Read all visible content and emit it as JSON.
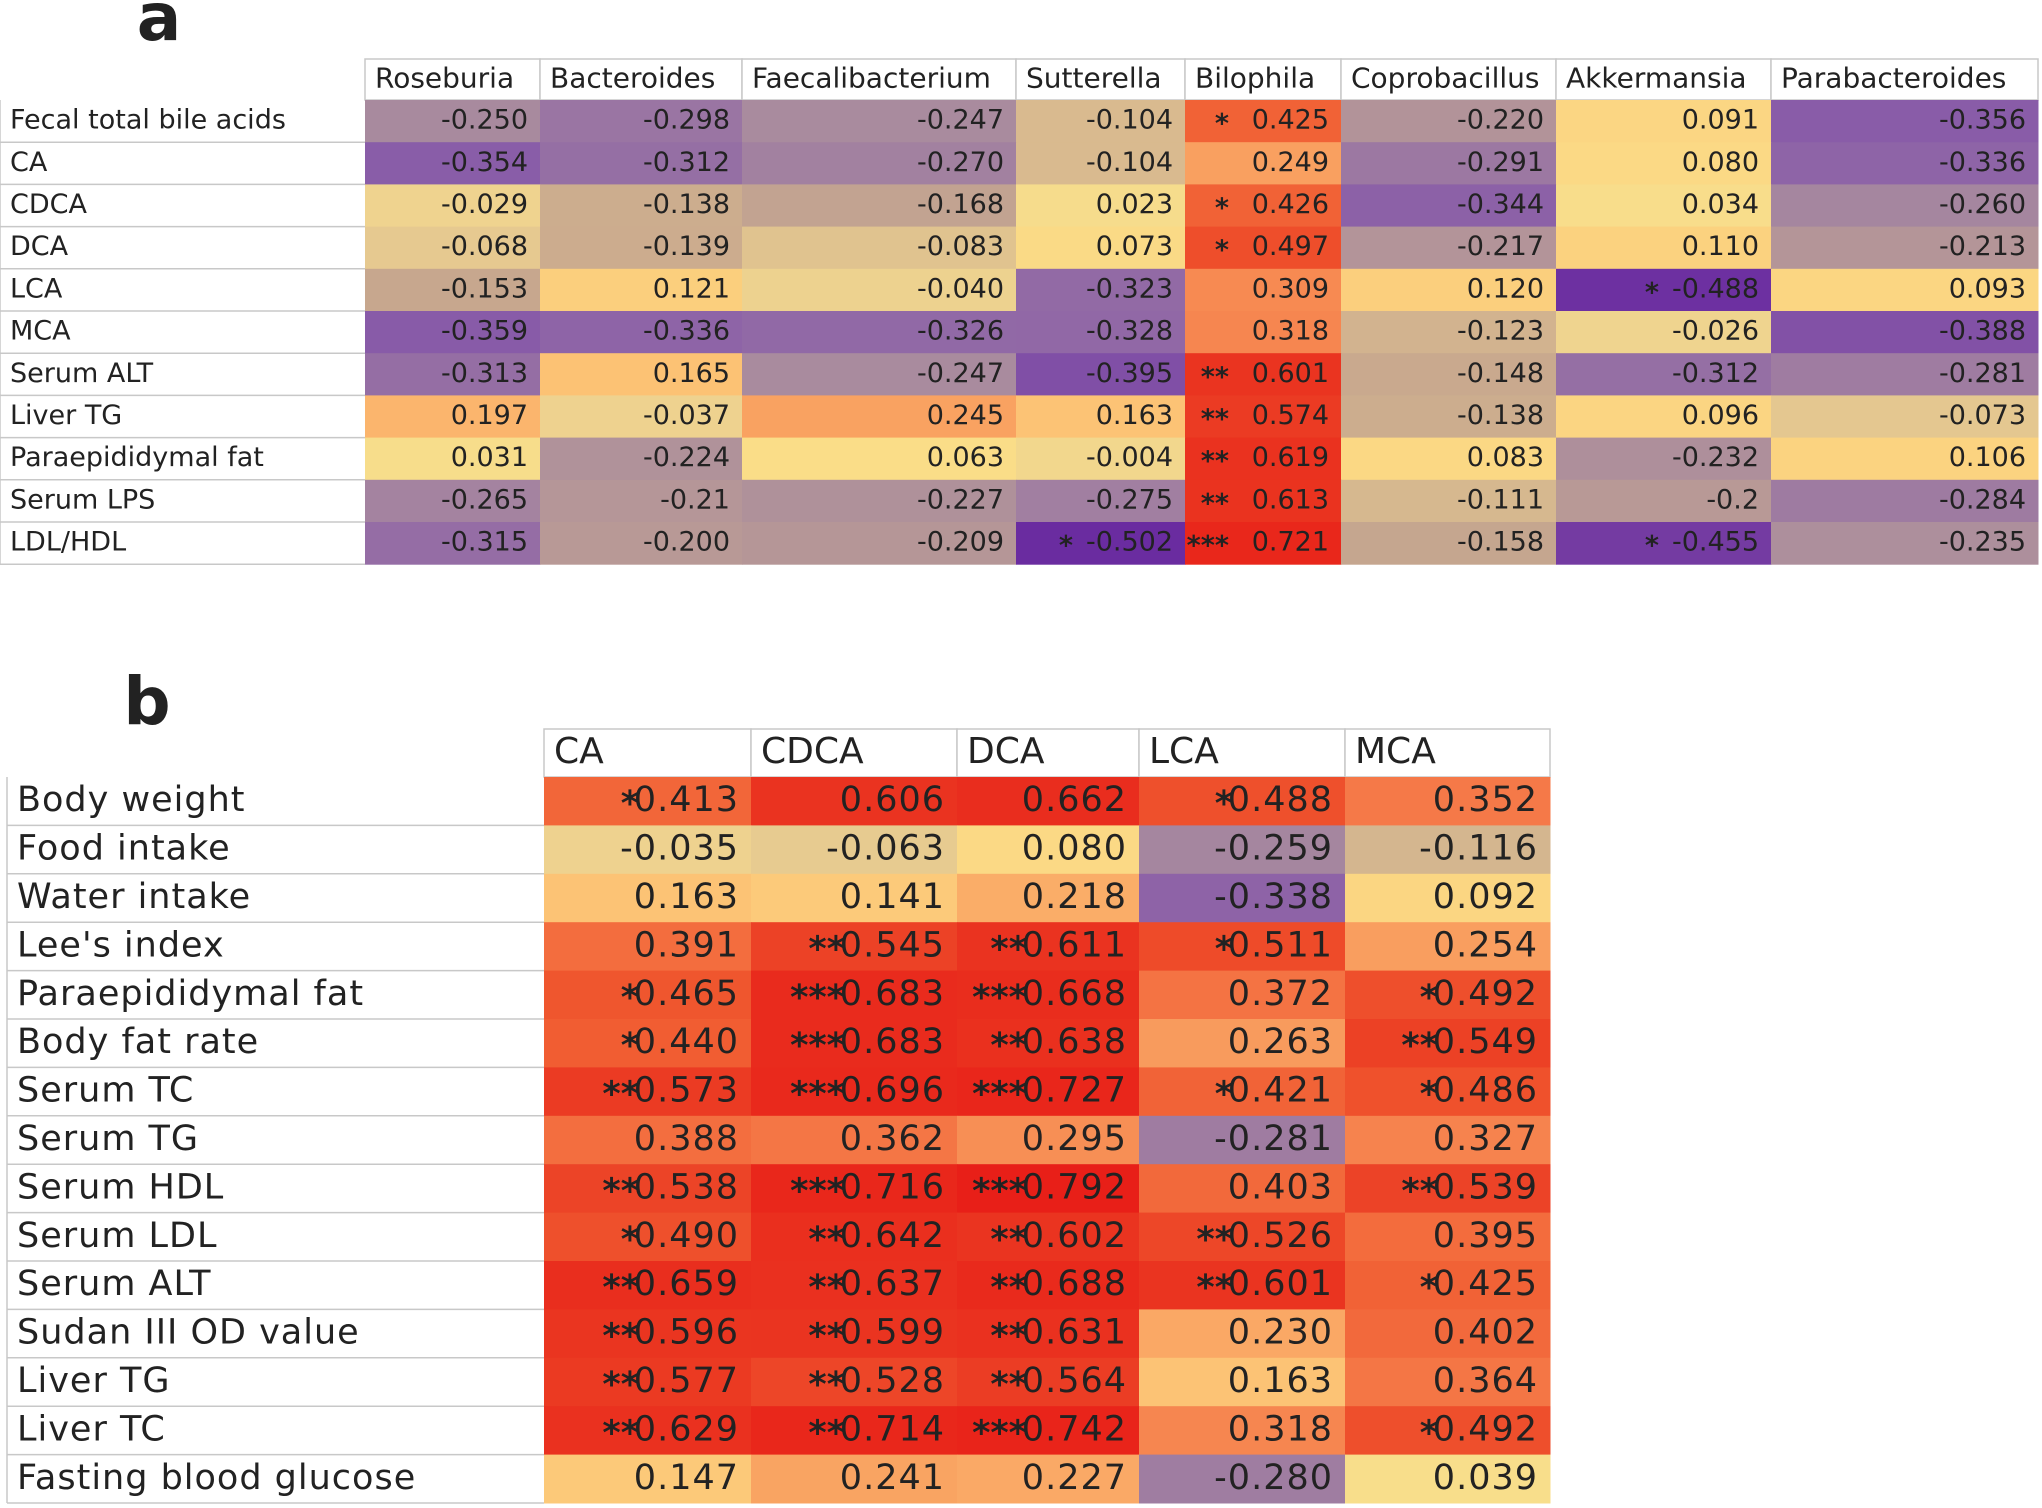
{
  "panel_a": {
    "label": "a",
    "columns": [
      "Roseburia",
      "Bacteroides",
      "Faecalibacterium",
      "Sutterella",
      "Bilophila",
      "Coprobacillus",
      "Akkermansia",
      "Parabacteroides"
    ],
    "rows": [
      {
        "label": "Fecal total bile acids",
        "cells": [
          {
            "value": "-0.250"
          },
          {
            "value": "-0.298"
          },
          {
            "value": "-0.247"
          },
          {
            "value": "-0.104"
          },
          {
            "stars": "*",
            "value": "0.425"
          },
          {
            "value": "-0.220"
          },
          {
            "value": "0.091"
          },
          {
            "value": "-0.356"
          }
        ]
      },
      {
        "label": "CA",
        "cells": [
          {
            "value": "-0.354"
          },
          {
            "value": "-0.312"
          },
          {
            "value": "-0.270"
          },
          {
            "value": "-0.104"
          },
          {
            "value": "0.249"
          },
          {
            "value": "-0.291"
          },
          {
            "value": "0.080"
          },
          {
            "value": "-0.336"
          }
        ]
      },
      {
        "label": "CDCA",
        "cells": [
          {
            "value": "-0.029"
          },
          {
            "value": "-0.138"
          },
          {
            "value": "-0.168"
          },
          {
            "value": "0.023"
          },
          {
            "stars": "*",
            "value": "0.426"
          },
          {
            "value": "-0.344"
          },
          {
            "value": "0.034"
          },
          {
            "value": "-0.260"
          }
        ]
      },
      {
        "label": "DCA",
        "cells": [
          {
            "value": "-0.068"
          },
          {
            "value": "-0.139"
          },
          {
            "value": "-0.083"
          },
          {
            "value": "0.073"
          },
          {
            "stars": "*",
            "value": "0.497"
          },
          {
            "value": "-0.217"
          },
          {
            "value": "0.110"
          },
          {
            "value": "-0.213"
          }
        ]
      },
      {
        "label": "LCA",
        "cells": [
          {
            "value": "-0.153"
          },
          {
            "value": "0.121"
          },
          {
            "value": "-0.040"
          },
          {
            "value": "-0.323"
          },
          {
            "value": "0.309"
          },
          {
            "value": "0.120"
          },
          {
            "stars": "*",
            "value": "-0.488"
          },
          {
            "value": "0.093"
          }
        ]
      },
      {
        "label": "MCA",
        "cells": [
          {
            "value": "-0.359"
          },
          {
            "value": "-0.336"
          },
          {
            "value": "-0.326"
          },
          {
            "value": "-0.328"
          },
          {
            "value": "0.318"
          },
          {
            "value": "-0.123"
          },
          {
            "value": "-0.026"
          },
          {
            "value": "-0.388"
          }
        ]
      },
      {
        "label": "Serum ALT",
        "cells": [
          {
            "value": "-0.313"
          },
          {
            "value": "0.165"
          },
          {
            "value": "-0.247"
          },
          {
            "value": "-0.395"
          },
          {
            "stars": "**",
            "value": "0.601"
          },
          {
            "value": "-0.148"
          },
          {
            "value": "-0.312"
          },
          {
            "value": "-0.281"
          }
        ]
      },
      {
        "label": "Liver TG",
        "cells": [
          {
            "value": "0.197"
          },
          {
            "value": "-0.037"
          },
          {
            "value": "0.245"
          },
          {
            "value": "0.163"
          },
          {
            "stars": "**",
            "value": "0.574"
          },
          {
            "value": "-0.138"
          },
          {
            "value": "0.096"
          },
          {
            "value": "-0.073"
          }
        ]
      },
      {
        "label": "Paraepididymal fat",
        "cells": [
          {
            "value": "0.031"
          },
          {
            "value": "-0.224"
          },
          {
            "value": "0.063"
          },
          {
            "value": "-0.004"
          },
          {
            "stars": "**",
            "value": "0.619"
          },
          {
            "value": "0.083"
          },
          {
            "value": "-0.232"
          },
          {
            "value": "0.106"
          }
        ]
      },
      {
        "label": "Serum LPS",
        "cells": [
          {
            "value": "-0.265"
          },
          {
            "value": "-0.21"
          },
          {
            "value": "-0.227"
          },
          {
            "value": "-0.275"
          },
          {
            "stars": "**",
            "value": "0.613"
          },
          {
            "value": "-0.111"
          },
          {
            "value": "-0.2"
          },
          {
            "value": "-0.284"
          }
        ]
      },
      {
        "label": "LDL/HDL",
        "cells": [
          {
            "value": "-0.315"
          },
          {
            "value": "-0.200"
          },
          {
            "value": "-0.209"
          },
          {
            "stars": "*",
            "value": "-0.502"
          },
          {
            "stars": "***",
            "value": "0.721"
          },
          {
            "value": "-0.158"
          },
          {
            "stars": "*",
            "value": "-0.455"
          },
          {
            "value": "-0.235"
          }
        ]
      }
    ]
  },
  "panel_b": {
    "label": "b",
    "columns": [
      "CA",
      "CDCA",
      "DCA",
      "LCA",
      "MCA"
    ],
    "rows": [
      {
        "label": "Body weight",
        "cells": [
          {
            "stars": "*",
            "value": "0.413"
          },
          {
            "value": "0.606"
          },
          {
            "value": "0.662"
          },
          {
            "stars": "*",
            "value": "0.488"
          },
          {
            "value": "0.352"
          }
        ]
      },
      {
        "label": "Food intake",
        "cells": [
          {
            "value": "-0.035"
          },
          {
            "value": "-0.063"
          },
          {
            "value": "0.080"
          },
          {
            "value": "-0.259"
          },
          {
            "value": "-0.116"
          }
        ]
      },
      {
        "label": "Water intake",
        "cells": [
          {
            "value": "0.163"
          },
          {
            "value": "0.141"
          },
          {
            "value": "0.218"
          },
          {
            "value": "-0.338"
          },
          {
            "value": "0.092"
          }
        ]
      },
      {
        "label": "Lee's index",
        "cells": [
          {
            "value": "0.391"
          },
          {
            "stars": "**",
            "value": "0.545"
          },
          {
            "stars": "**",
            "value": "0.611"
          },
          {
            "stars": "*",
            "value": "0.511"
          },
          {
            "value": "0.254"
          }
        ]
      },
      {
        "label": "Paraepididymal fat",
        "cells": [
          {
            "stars": "*",
            "value": "0.465"
          },
          {
            "stars": "***",
            "value": "0.683"
          },
          {
            "stars": "***",
            "value": "0.668"
          },
          {
            "value": "0.372"
          },
          {
            "stars": "*",
            "value": "0.492"
          }
        ]
      },
      {
        "label": "Body fat rate",
        "cells": [
          {
            "stars": "*",
            "value": "0.440"
          },
          {
            "stars": "***",
            "value": "0.683"
          },
          {
            "stars": "**",
            "value": "0.638"
          },
          {
            "value": "0.263"
          },
          {
            "stars": "**",
            "value": "0.549"
          }
        ]
      },
      {
        "label": "Serum TC",
        "cells": [
          {
            "stars": "**",
            "value": "0.573"
          },
          {
            "stars": "***",
            "value": "0.696"
          },
          {
            "stars": "***",
            "value": "0.727"
          },
          {
            "stars": "*",
            "value": "0.421"
          },
          {
            "stars": "*",
            "value": "0.486"
          }
        ]
      },
      {
        "label": "Serum TG",
        "cells": [
          {
            "value": "0.388"
          },
          {
            "value": "0.362"
          },
          {
            "value": "0.295"
          },
          {
            "value": "-0.281"
          },
          {
            "value": "0.327"
          }
        ]
      },
      {
        "label": "Serum HDL",
        "cells": [
          {
            "stars": "**",
            "value": "0.538"
          },
          {
            "stars": "***",
            "value": "0.716"
          },
          {
            "stars": "***",
            "value": "0.792"
          },
          {
            "value": "0.403"
          },
          {
            "stars": "**",
            "value": "0.539"
          }
        ]
      },
      {
        "label": "Serum LDL",
        "cells": [
          {
            "stars": "*",
            "value": "0.490"
          },
          {
            "stars": "**",
            "value": "0.642"
          },
          {
            "stars": "**",
            "value": "0.602"
          },
          {
            "stars": "**",
            "value": "0.526"
          },
          {
            "value": "0.395"
          }
        ]
      },
      {
        "label": "Serum ALT",
        "cells": [
          {
            "stars": "**",
            "value": "0.659"
          },
          {
            "stars": "**",
            "value": "0.637"
          },
          {
            "stars": "**",
            "value": "0.688"
          },
          {
            "stars": "**",
            "value": "0.601"
          },
          {
            "stars": "*",
            "value": "0.425"
          }
        ]
      },
      {
        "label": "Sudan III OD value",
        "cells": [
          {
            "stars": "**",
            "value": "0.596"
          },
          {
            "stars": "**",
            "value": "0.599"
          },
          {
            "stars": "**",
            "value": "0.631"
          },
          {
            "value": "0.230"
          },
          {
            "value": "0.402"
          }
        ]
      },
      {
        "label": "Liver TG",
        "cells": [
          {
            "stars": "**",
            "value": "0.577"
          },
          {
            "stars": "**",
            "value": "0.528"
          },
          {
            "stars": "**",
            "value": "0.564"
          },
          {
            "value": "0.163"
          },
          {
            "value": "0.364"
          }
        ]
      },
      {
        "label": "Liver TC",
        "cells": [
          {
            "stars": "**",
            "value": "0.629"
          },
          {
            "stars": "**",
            "value": "0.714"
          },
          {
            "stars": "***",
            "value": "0.742"
          },
          {
            "value": "0.318"
          },
          {
            "stars": "*",
            "value": "0.492"
          }
        ]
      },
      {
        "label": "Fasting blood glucose",
        "cells": [
          {
            "value": "0.147"
          },
          {
            "value": "0.241"
          },
          {
            "value": "0.227"
          },
          {
            "value": "-0.280"
          },
          {
            "value": "0.039"
          }
        ]
      }
    ]
  }
}
